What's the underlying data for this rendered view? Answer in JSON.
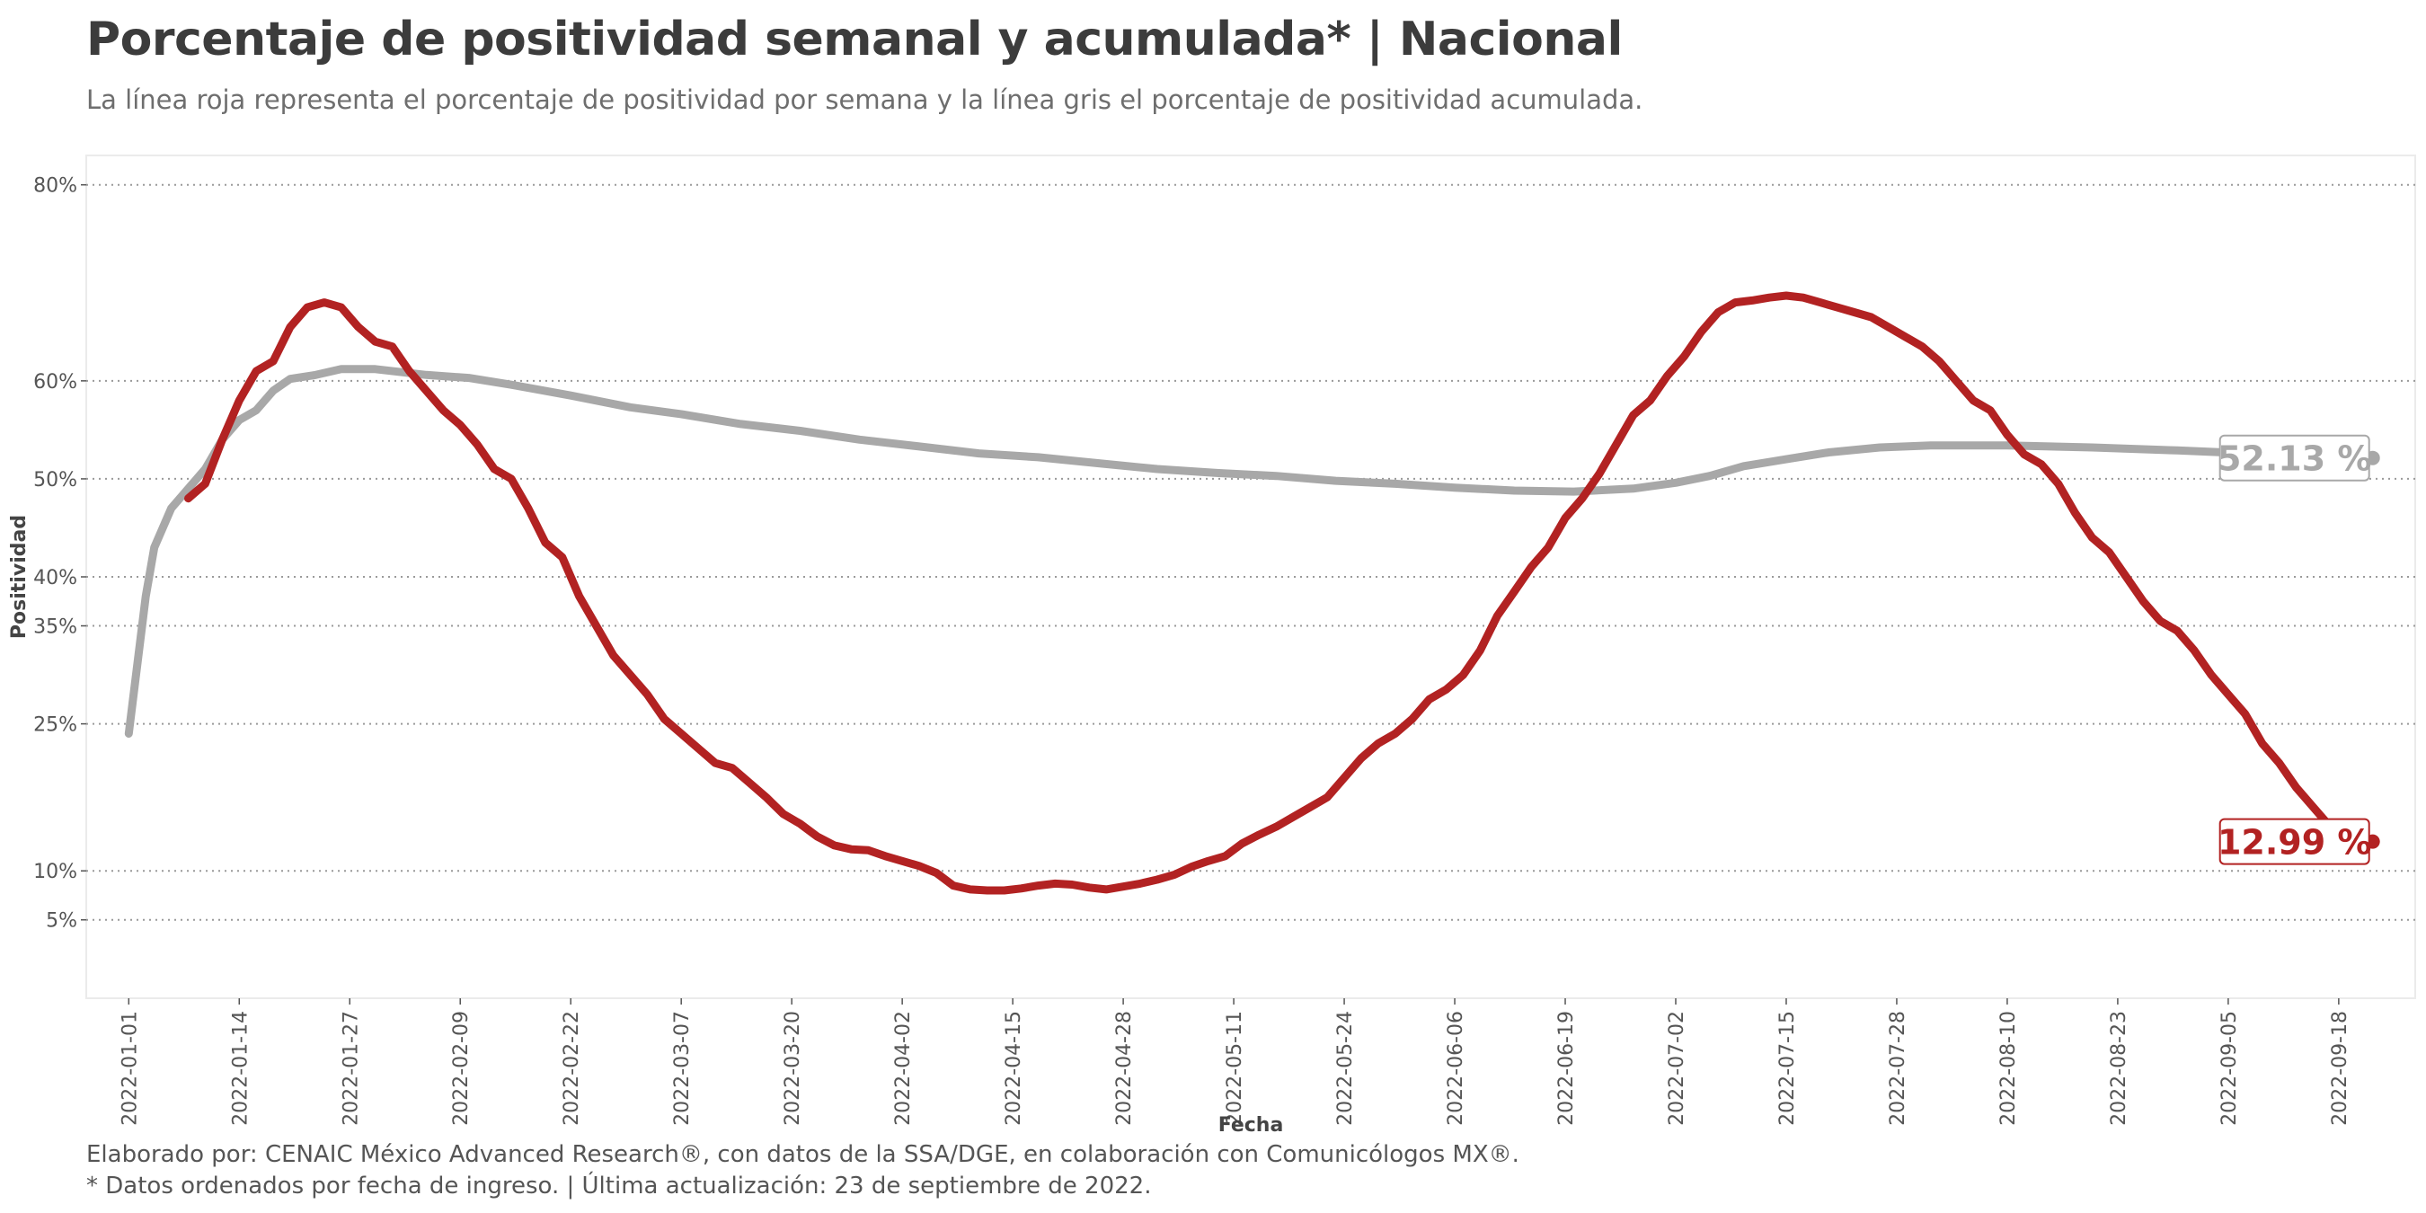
{
  "chart_data": {
    "type": "line",
    "title": "Porcentaje de positividad semanal y acumulada* | Nacional",
    "subtitle": "La línea roja representa el porcentaje de positividad por semana y la línea gris el porcentaje de positividad acumulada.",
    "xlabel": "Fecha",
    "ylabel": "Positividad",
    "x_range": [
      "2021-12-27",
      "2022-09-27"
    ],
    "ylim": [
      -3,
      83
    ],
    "x_ticks": [
      "2022-01-01",
      "2022-01-14",
      "2022-01-27",
      "2022-02-09",
      "2022-02-22",
      "2022-03-07",
      "2022-03-20",
      "2022-04-02",
      "2022-04-15",
      "2022-04-28",
      "2022-05-11",
      "2022-05-24",
      "2022-06-06",
      "2022-06-19",
      "2022-07-02",
      "2022-07-15",
      "2022-07-28",
      "2022-08-10",
      "2022-08-23",
      "2022-09-05",
      "2022-09-18"
    ],
    "y_ticks": [
      {
        "value": 5,
        "label": "5%"
      },
      {
        "value": 10,
        "label": "10%"
      },
      {
        "value": 25,
        "label": "25%"
      },
      {
        "value": 35,
        "label": "35%"
      },
      {
        "value": 40,
        "label": "40%"
      },
      {
        "value": 50,
        "label": "50%"
      },
      {
        "value": 60,
        "label": "60%"
      },
      {
        "value": 80,
        "label": "80%"
      }
    ],
    "grid": {
      "horizontal": true,
      "vertical": false,
      "style": "dotted"
    },
    "series": [
      {
        "key": "acumulada",
        "color": "#a8a8a8",
        "points": [
          [
            "2022-01-01",
            24
          ],
          [
            "2022-01-03",
            38
          ],
          [
            "2022-01-04",
            43
          ],
          [
            "2022-01-06",
            47
          ],
          [
            "2022-01-08",
            49
          ],
          [
            "2022-01-10",
            51
          ],
          [
            "2022-01-12",
            54
          ],
          [
            "2022-01-14",
            56
          ],
          [
            "2022-01-16",
            57
          ],
          [
            "2022-01-18",
            59
          ],
          [
            "2022-01-20",
            60.2
          ],
          [
            "2022-01-23",
            60.6
          ],
          [
            "2022-01-26",
            61.2
          ],
          [
            "2022-01-30",
            61.2
          ],
          [
            "2022-02-05",
            60.6
          ],
          [
            "2022-02-10",
            60.3
          ],
          [
            "2022-02-15",
            59.6
          ],
          [
            "2022-02-22",
            58.5
          ],
          [
            "2022-03-01",
            57.3
          ],
          [
            "2022-03-07",
            56.6
          ],
          [
            "2022-03-14",
            55.6
          ],
          [
            "2022-03-21",
            54.9
          ],
          [
            "2022-03-28",
            54.0
          ],
          [
            "2022-04-04",
            53.3
          ],
          [
            "2022-04-11",
            52.6
          ],
          [
            "2022-04-18",
            52.2
          ],
          [
            "2022-04-25",
            51.6
          ],
          [
            "2022-05-02",
            51.0
          ],
          [
            "2022-05-09",
            50.6
          ],
          [
            "2022-05-16",
            50.3
          ],
          [
            "2022-05-23",
            49.8
          ],
          [
            "2022-05-30",
            49.5
          ],
          [
            "2022-06-06",
            49.1
          ],
          [
            "2022-06-13",
            48.8
          ],
          [
            "2022-06-20",
            48.7
          ],
          [
            "2022-06-27",
            49.0
          ],
          [
            "2022-07-02",
            49.6
          ],
          [
            "2022-07-06",
            50.3
          ],
          [
            "2022-07-10",
            51.3
          ],
          [
            "2022-07-15",
            52.0
          ],
          [
            "2022-07-20",
            52.7
          ],
          [
            "2022-07-26",
            53.2
          ],
          [
            "2022-08-01",
            53.4
          ],
          [
            "2022-08-10",
            53.4
          ],
          [
            "2022-08-20",
            53.2
          ],
          [
            "2022-08-30",
            52.9
          ],
          [
            "2022-09-10",
            52.5
          ],
          [
            "2022-09-22",
            52.13
          ]
        ],
        "end_label": "52.13 %"
      },
      {
        "key": "semanal",
        "color": "#b22222",
        "points": [
          [
            "2022-01-08",
            48
          ],
          [
            "2022-01-10",
            49.5
          ],
          [
            "2022-01-12",
            54
          ],
          [
            "2022-01-14",
            58
          ],
          [
            "2022-01-16",
            61
          ],
          [
            "2022-01-18",
            62
          ],
          [
            "2022-01-20",
            65.5
          ],
          [
            "2022-01-22",
            67.5
          ],
          [
            "2022-01-24",
            68
          ],
          [
            "2022-01-26",
            67.5
          ],
          [
            "2022-01-28",
            65.5
          ],
          [
            "2022-01-30",
            64
          ],
          [
            "2022-02-01",
            63.5
          ],
          [
            "2022-02-03",
            61
          ],
          [
            "2022-02-05",
            59
          ],
          [
            "2022-02-07",
            57
          ],
          [
            "2022-02-09",
            55.5
          ],
          [
            "2022-02-11",
            53.5
          ],
          [
            "2022-02-13",
            51
          ],
          [
            "2022-02-15",
            50
          ],
          [
            "2022-02-17",
            47
          ],
          [
            "2022-02-19",
            43.5
          ],
          [
            "2022-02-21",
            42
          ],
          [
            "2022-02-23",
            38
          ],
          [
            "2022-02-25",
            35
          ],
          [
            "2022-02-27",
            32
          ],
          [
            "2022-03-01",
            30
          ],
          [
            "2022-03-03",
            28
          ],
          [
            "2022-03-05",
            25.5
          ],
          [
            "2022-03-07",
            24
          ],
          [
            "2022-03-09",
            22.5
          ],
          [
            "2022-03-11",
            21
          ],
          [
            "2022-03-13",
            20.5
          ],
          [
            "2022-03-15",
            19
          ],
          [
            "2022-03-17",
            17.5
          ],
          [
            "2022-03-19",
            15.8
          ],
          [
            "2022-03-21",
            14.8
          ],
          [
            "2022-03-23",
            13.5
          ],
          [
            "2022-03-25",
            12.6
          ],
          [
            "2022-03-27",
            12.2
          ],
          [
            "2022-03-29",
            12.1
          ],
          [
            "2022-03-31",
            11.5
          ],
          [
            "2022-04-02",
            11
          ],
          [
            "2022-04-04",
            10.5
          ],
          [
            "2022-04-06",
            9.8
          ],
          [
            "2022-04-08",
            8.5
          ],
          [
            "2022-04-10",
            8.1
          ],
          [
            "2022-04-12",
            8.0
          ],
          [
            "2022-04-14",
            8.0
          ],
          [
            "2022-04-16",
            8.2
          ],
          [
            "2022-04-18",
            8.5
          ],
          [
            "2022-04-20",
            8.7
          ],
          [
            "2022-04-22",
            8.6
          ],
          [
            "2022-04-24",
            8.3
          ],
          [
            "2022-04-26",
            8.1
          ],
          [
            "2022-04-28",
            8.4
          ],
          [
            "2022-04-30",
            8.7
          ],
          [
            "2022-05-02",
            9.1
          ],
          [
            "2022-05-04",
            9.6
          ],
          [
            "2022-05-06",
            10.4
          ],
          [
            "2022-05-08",
            11
          ],
          [
            "2022-05-10",
            11.5
          ],
          [
            "2022-05-12",
            12.8
          ],
          [
            "2022-05-14",
            13.7
          ],
          [
            "2022-05-16",
            14.5
          ],
          [
            "2022-05-18",
            15.5
          ],
          [
            "2022-05-20",
            16.5
          ],
          [
            "2022-05-22",
            17.5
          ],
          [
            "2022-05-24",
            19.5
          ],
          [
            "2022-05-26",
            21.5
          ],
          [
            "2022-05-28",
            23
          ],
          [
            "2022-05-30",
            24
          ],
          [
            "2022-06-01",
            25.5
          ],
          [
            "2022-06-03",
            27.5
          ],
          [
            "2022-06-05",
            28.5
          ],
          [
            "2022-06-07",
            30
          ],
          [
            "2022-06-09",
            32.5
          ],
          [
            "2022-06-11",
            36
          ],
          [
            "2022-06-13",
            38.5
          ],
          [
            "2022-06-15",
            41
          ],
          [
            "2022-06-17",
            43
          ],
          [
            "2022-06-19",
            46
          ],
          [
            "2022-06-21",
            48
          ],
          [
            "2022-06-23",
            50.5
          ],
          [
            "2022-06-25",
            53.5
          ],
          [
            "2022-06-27",
            56.5
          ],
          [
            "2022-06-29",
            58
          ],
          [
            "2022-07-01",
            60.5
          ],
          [
            "2022-07-03",
            62.5
          ],
          [
            "2022-07-05",
            65
          ],
          [
            "2022-07-07",
            67
          ],
          [
            "2022-07-09",
            68
          ],
          [
            "2022-07-11",
            68.2
          ],
          [
            "2022-07-13",
            68.5
          ],
          [
            "2022-07-15",
            68.7
          ],
          [
            "2022-07-17",
            68.5
          ],
          [
            "2022-07-19",
            68.0
          ],
          [
            "2022-07-21",
            67.5
          ],
          [
            "2022-07-23",
            67.0
          ],
          [
            "2022-07-25",
            66.5
          ],
          [
            "2022-07-27",
            65.5
          ],
          [
            "2022-07-29",
            64.5
          ],
          [
            "2022-07-31",
            63.5
          ],
          [
            "2022-08-02",
            62
          ],
          [
            "2022-08-04",
            60
          ],
          [
            "2022-08-06",
            58
          ],
          [
            "2022-08-08",
            57
          ],
          [
            "2022-08-10",
            54.5
          ],
          [
            "2022-08-12",
            52.5
          ],
          [
            "2022-08-14",
            51.5
          ],
          [
            "2022-08-16",
            49.5
          ],
          [
            "2022-08-18",
            46.5
          ],
          [
            "2022-08-20",
            44
          ],
          [
            "2022-08-22",
            42.5
          ],
          [
            "2022-08-24",
            40
          ],
          [
            "2022-08-26",
            37.5
          ],
          [
            "2022-08-28",
            35.5
          ],
          [
            "2022-08-30",
            34.5
          ],
          [
            "2022-09-01",
            32.5
          ],
          [
            "2022-09-03",
            30
          ],
          [
            "2022-09-05",
            28
          ],
          [
            "2022-09-07",
            26
          ],
          [
            "2022-09-09",
            23
          ],
          [
            "2022-09-11",
            21
          ],
          [
            "2022-09-13",
            18.5
          ],
          [
            "2022-09-15",
            16.5
          ],
          [
            "2022-09-17",
            14.5
          ],
          [
            "2022-09-19",
            13.5
          ],
          [
            "2022-09-22",
            12.99
          ]
        ],
        "end_label": "12.99 %"
      }
    ]
  },
  "footer": {
    "credit": "Elaborado por: CENAIC México Advanced Research®, con datos de la SSA/DGE, en colaboración con Comunicólogos MX®.",
    "note": "* Datos ordenados por fecha de ingreso. | Última actualización: 23 de septiembre de 2022."
  }
}
